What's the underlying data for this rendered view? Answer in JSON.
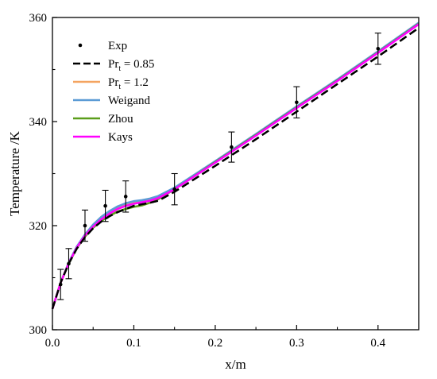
{
  "chart_data": {
    "type": "line",
    "title": "",
    "xlabel": "x/m",
    "ylabel": "Temperature /K",
    "xlim": [
      0.0,
      0.45
    ],
    "ylim": [
      300,
      360
    ],
    "x_ticks": [
      "0.0",
      "0.1",
      "0.2",
      "0.3",
      "0.4"
    ],
    "y_ticks": [
      "300",
      "320",
      "340",
      "360"
    ],
    "x_tick_values": [
      0.0,
      0.1,
      0.2,
      0.3,
      0.4
    ],
    "y_tick_values": [
      300,
      320,
      340,
      360
    ],
    "grid": false,
    "legend_position": "top-left",
    "experiment": {
      "name": "Exp",
      "color": "#000000",
      "points": [
        {
          "x": 0.01,
          "y": 308.7,
          "err": 2.9
        },
        {
          "x": 0.02,
          "y": 312.7,
          "err": 2.9
        },
        {
          "x": 0.04,
          "y": 320.0,
          "err": 3.0
        },
        {
          "x": 0.065,
          "y": 323.8,
          "err": 3.0
        },
        {
          "x": 0.09,
          "y": 325.6,
          "err": 3.0
        },
        {
          "x": 0.15,
          "y": 327.0,
          "err": 3.0
        },
        {
          "x": 0.22,
          "y": 335.1,
          "err": 2.9
        },
        {
          "x": 0.3,
          "y": 343.7,
          "err": 3.0
        },
        {
          "x": 0.4,
          "y": 354.0,
          "err": 3.0
        }
      ]
    },
    "series": [
      {
        "name": "Pr_t = 0.85",
        "label_main": "Pr",
        "label_sub": "t",
        "label_rest": " = 0.85",
        "color": "#000000",
        "dash": true,
        "x": [
          0.0,
          0.01,
          0.02,
          0.03,
          0.04,
          0.05,
          0.06,
          0.07,
          0.08,
          0.09,
          0.1,
          0.11,
          0.12,
          0.13,
          0.15,
          0.2,
          0.25,
          0.3,
          0.35,
          0.4,
          0.45
        ],
        "y": [
          304.0,
          309.0,
          312.7,
          315.6,
          317.8,
          319.5,
          320.8,
          321.8,
          322.6,
          323.2,
          323.8,
          324.1,
          324.4,
          324.8,
          326.5,
          331.5,
          336.6,
          341.9,
          347.2,
          352.5,
          358.0
        ]
      },
      {
        "name": "Pr_t = 1.2",
        "label_main": "Pr",
        "label_sub": "t",
        "label_rest": " = 1.2",
        "color": "#f4a460",
        "dash": false,
        "x": [
          0.0,
          0.01,
          0.02,
          0.03,
          0.04,
          0.05,
          0.06,
          0.07,
          0.08,
          0.09,
          0.1,
          0.11,
          0.12,
          0.13,
          0.15,
          0.2,
          0.25,
          0.3,
          0.35,
          0.4,
          0.45
        ],
        "y": [
          304.0,
          309.0,
          312.9,
          315.9,
          318.2,
          320.0,
          321.4,
          322.5,
          323.4,
          324.0,
          324.4,
          324.7,
          325.0,
          325.5,
          327.2,
          332.3,
          337.5,
          342.8,
          348.0,
          353.4,
          358.9
        ]
      },
      {
        "name": "Weigand",
        "color": "#5b9bd5",
        "dash": false,
        "x": [
          0.0,
          0.01,
          0.02,
          0.03,
          0.04,
          0.05,
          0.06,
          0.07,
          0.08,
          0.09,
          0.1,
          0.11,
          0.12,
          0.13,
          0.15,
          0.2,
          0.25,
          0.3,
          0.35,
          0.4,
          0.45
        ],
        "y": [
          304.0,
          309.0,
          312.9,
          316.0,
          318.3,
          320.2,
          321.7,
          322.8,
          323.7,
          324.3,
          324.7,
          324.9,
          325.2,
          325.7,
          327.3,
          332.4,
          337.6,
          342.9,
          348.1,
          353.5,
          359.0
        ]
      },
      {
        "name": "Zhou",
        "color": "#5a9e1a",
        "dash": false,
        "x": [
          0.0,
          0.01,
          0.02,
          0.03,
          0.04,
          0.05,
          0.06,
          0.07,
          0.08,
          0.09,
          0.1,
          0.11,
          0.12,
          0.13,
          0.15,
          0.2,
          0.25,
          0.3,
          0.35,
          0.4,
          0.45
        ],
        "y": [
          304.0,
          309.0,
          312.7,
          315.7,
          317.9,
          319.6,
          320.9,
          321.9,
          322.7,
          323.2,
          323.6,
          323.9,
          324.4,
          325.1,
          327.0,
          332.2,
          337.4,
          342.7,
          347.9,
          353.3,
          358.8
        ]
      },
      {
        "name": "Kays",
        "color": "#ff00ff",
        "dash": false,
        "x": [
          0.0,
          0.01,
          0.02,
          0.03,
          0.04,
          0.05,
          0.06,
          0.07,
          0.08,
          0.09,
          0.1,
          0.11,
          0.12,
          0.13,
          0.15,
          0.2,
          0.25,
          0.3,
          0.35,
          0.4,
          0.45
        ],
        "y": [
          304.0,
          309.0,
          312.8,
          315.8,
          318.1,
          319.8,
          321.2,
          322.3,
          323.2,
          323.8,
          324.2,
          324.5,
          324.8,
          325.3,
          327.0,
          332.1,
          337.3,
          342.6,
          347.8,
          353.2,
          358.7
        ]
      }
    ]
  }
}
